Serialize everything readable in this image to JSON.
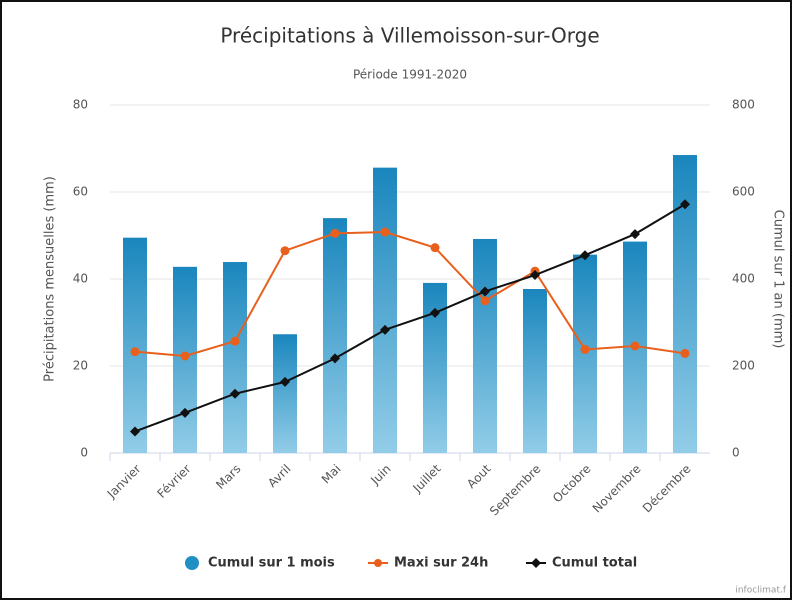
{
  "chart_data": {
    "type": "bar-line",
    "title": "Précipitations à Villemoisson-sur-Orge",
    "subtitle": "Période 1991-2020",
    "ylabel": "Précipitations mensuelles (mm)",
    "y2label": "Cumul sur 1 an (mm)",
    "credit": "infoclimat.f",
    "categories": [
      "Janvier",
      "Février",
      "Mars",
      "Avril",
      "Mai",
      "Juin",
      "Juillet",
      "Aout",
      "Septembre",
      "Octobre",
      "Novembre",
      "Décembre"
    ],
    "series": [
      {
        "name": "Cumul sur 1 mois",
        "type": "bar",
        "color": "#1f8fc4",
        "values": [
          49.5,
          42.8,
          43.9,
          27.3,
          54,
          65.6,
          39.1,
          49.2,
          37.7,
          45.6,
          48.6,
          68.5
        ]
      },
      {
        "name": "Maxi sur 24h",
        "type": "line",
        "color": "#e8601c",
        "values": [
          23.3,
          22.3,
          25.7,
          46.5,
          50.5,
          50.8,
          47.2,
          35.0,
          41.8,
          23.8,
          24.6,
          22.9
        ]
      },
      {
        "name": "Cumul total",
        "type": "line",
        "axis": "y2",
        "color": "#111111",
        "values": [
          49.5,
          92.3,
          136.2,
          163.5,
          217.5,
          283.1,
          322.2,
          371.4,
          409.1,
          454.7,
          503.3,
          571.8
        ]
      }
    ],
    "ylim": [
      0,
      80
    ],
    "yticks": [
      0,
      20,
      40,
      60,
      80
    ],
    "y2lim": [
      0,
      800
    ],
    "y2ticks": [
      0,
      200,
      400,
      600,
      800
    ],
    "grid": true,
    "legend": "bottom"
  }
}
